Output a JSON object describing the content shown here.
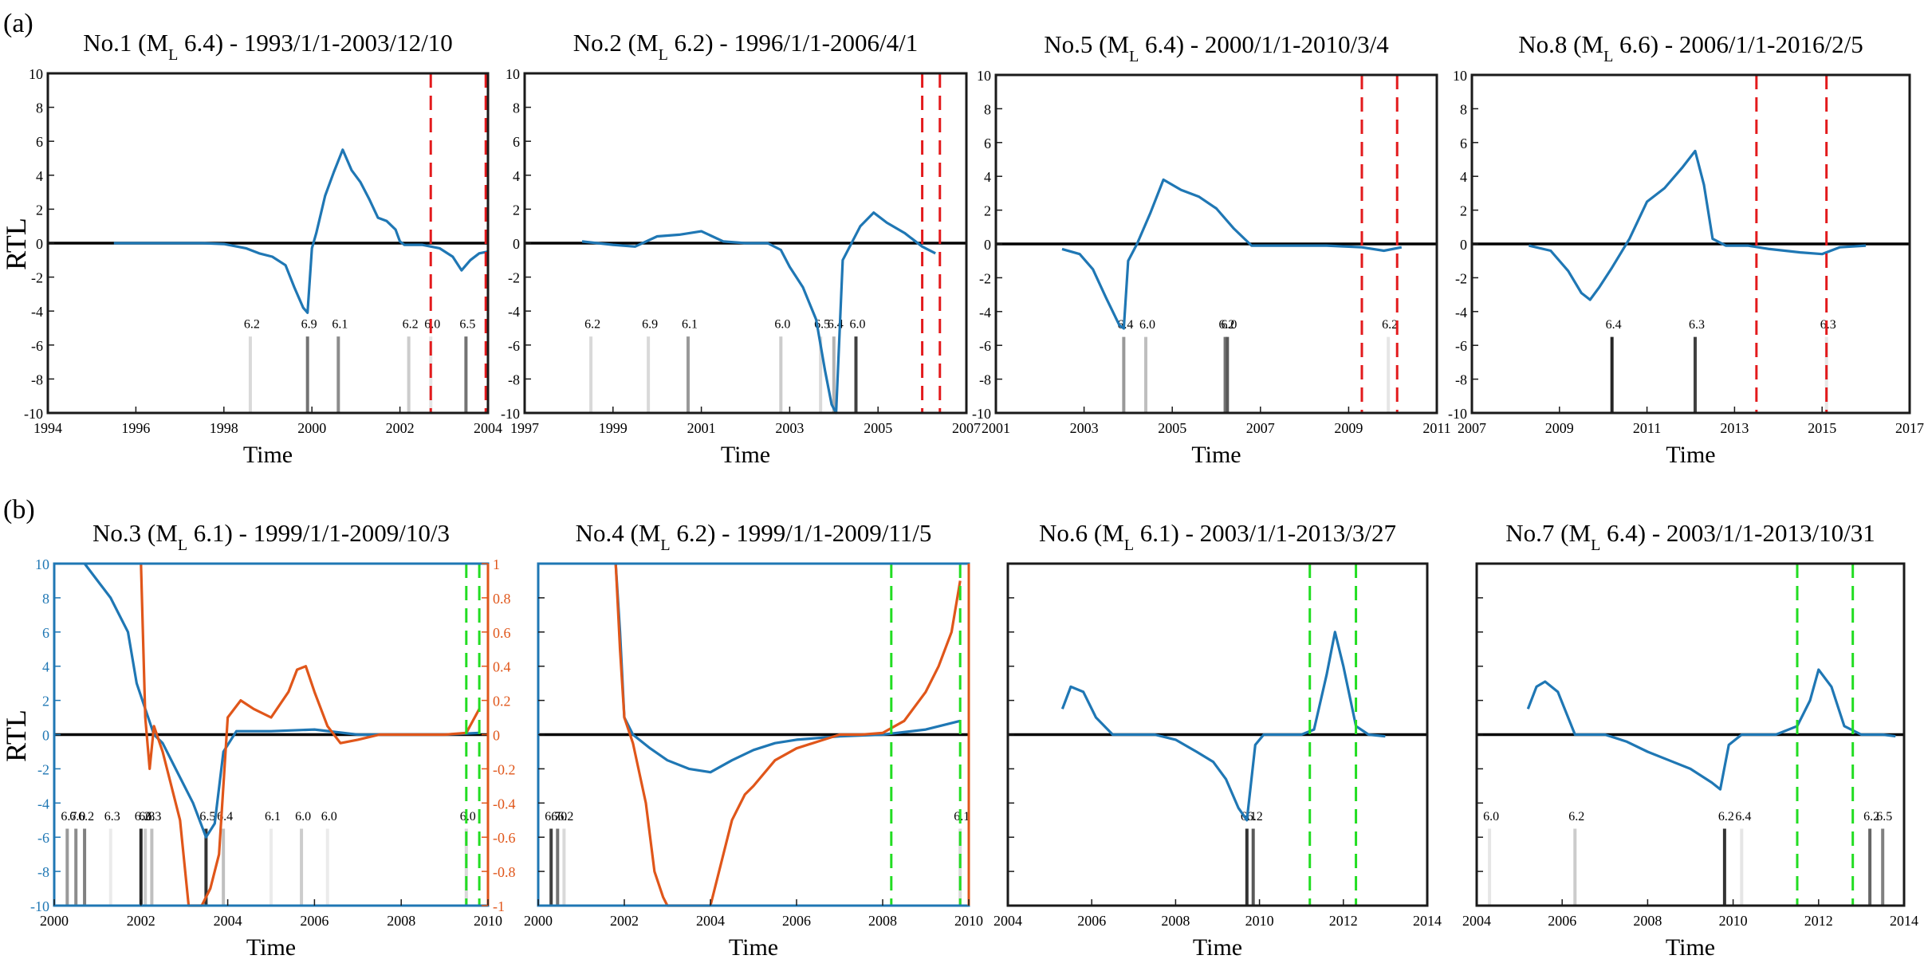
{
  "panel_labels": [
    "(a)",
    "(b)"
  ],
  "ylabel": "RTL",
  "xlabel": "Time",
  "colors": {
    "rtl": "#1f77b4",
    "secondary": "#e0561a",
    "zero": "#000000",
    "red_marker": "#e31a1c",
    "green_marker": "#22dd22"
  },
  "chart_data": [
    {
      "type": "line",
      "title_main": "No.1  (M",
      "title_sub": "L",
      "title_rest": " 6.4) - 1993/1/1-2003/12/10",
      "xlabel": "Time",
      "ylabel": "RTL",
      "xlim": [
        1994,
        2004
      ],
      "ylim": [
        -10,
        10
      ],
      "xticks": [
        1994,
        1996,
        1998,
        2000,
        2002,
        2004
      ],
      "yticks": [
        -10,
        -8,
        -6,
        -4,
        -2,
        0,
        2,
        4,
        6,
        8,
        10
      ],
      "series": [
        {
          "x": [
            1995.5,
            1996.5,
            1997.5,
            1998.0,
            1998.5,
            1998.8,
            1999.1,
            1999.4,
            1999.6,
            1999.8,
            1999.9,
            2000.0,
            2000.1,
            2000.3,
            2000.5,
            2000.7,
            2000.9,
            2001.1,
            2001.3,
            2001.5,
            2001.7,
            2001.9,
            2002.0,
            2002.1,
            2002.5,
            2002.9,
            2003.2,
            2003.4,
            2003.6,
            2003.8,
            2004.0
          ],
          "y": [
            0,
            0,
            0,
            -0.05,
            -0.3,
            -0.6,
            -0.8,
            -1.3,
            -2.6,
            -3.8,
            -4.1,
            -0.3,
            0.6,
            2.8,
            4.2,
            5.5,
            4.3,
            3.6,
            2.6,
            1.5,
            1.3,
            0.8,
            0.1,
            -0.1,
            -0.1,
            -0.3,
            -0.8,
            -1.6,
            -1.0,
            -0.6,
            -0.5
          ]
        }
      ],
      "events": [
        {
          "x": 1998.6,
          "label": "6.2",
          "shade": 0.85
        },
        {
          "x": 1999.9,
          "label": "6.9",
          "shade": 0.45
        },
        {
          "x": 2000.6,
          "label": "6.1",
          "shade": 0.55
        },
        {
          "x": 2002.2,
          "label": "6.2",
          "shade": 0.8
        },
        {
          "x": 2002.7,
          "label": "6.0",
          "shade": 0.9
        },
        {
          "x": 2003.5,
          "label": "6.5",
          "shade": 0.45
        }
      ],
      "vmarkers": {
        "color": "red",
        "x": [
          2002.7,
          2003.95
        ]
      }
    },
    {
      "type": "line",
      "title_main": "No.2 (M",
      "title_sub": "L",
      "title_rest": " 6.2) - 1996/1/1-2006/4/1",
      "xlabel": "Time",
      "ylabel": "",
      "xlim": [
        1997,
        2007
      ],
      "ylim": [
        -10,
        10
      ],
      "xticks": [
        1997,
        1999,
        2001,
        2003,
        2005,
        2007
      ],
      "yticks": [
        -10,
        -8,
        -6,
        -4,
        -2,
        0,
        2,
        4,
        6,
        8,
        10
      ],
      "series": [
        {
          "x": [
            1998.3,
            1999.0,
            1999.5,
            2000.0,
            2000.5,
            2001.0,
            2001.5,
            2002.0,
            2002.5,
            2002.8,
            2003.0,
            2003.3,
            2003.6,
            2003.8,
            2003.95,
            2004.05,
            2004.2,
            2004.6,
            2004.9,
            2005.2,
            2005.6,
            2006.0,
            2006.3
          ],
          "y": [
            0.1,
            -0.1,
            -0.2,
            0.4,
            0.5,
            0.7,
            0.1,
            0,
            0,
            -0.4,
            -1.4,
            -2.6,
            -4.5,
            -7.5,
            -9.5,
            -10,
            -1.0,
            1.0,
            1.8,
            1.2,
            0.6,
            -0.2,
            -0.6
          ]
        }
      ],
      "events": [
        {
          "x": 1998.5,
          "label": "6.2",
          "shade": 0.85
        },
        {
          "x": 1999.8,
          "label": "6.9",
          "shade": 0.85
        },
        {
          "x": 2000.7,
          "label": "6.1",
          "shade": 0.6
        },
        {
          "x": 2002.8,
          "label": "6.0",
          "shade": 0.8
        },
        {
          "x": 2003.7,
          "label": "6.5",
          "shade": 0.85
        },
        {
          "x": 2004.0,
          "label": "6.4",
          "shade": 0.7
        },
        {
          "x": 2004.5,
          "label": "6.0",
          "shade": 0.25
        }
      ],
      "vmarkers": {
        "color": "red",
        "x": [
          2006.0,
          2006.4
        ]
      }
    },
    {
      "type": "line",
      "title_main": "No.5 (M",
      "title_sub": "L",
      "title_rest": " 6.4) - 2000/1/1-2010/3/4",
      "xlabel": "Time",
      "ylabel": "",
      "xlim": [
        2001,
        2011
      ],
      "ylim": [
        -10,
        10
      ],
      "xticks": [
        2001,
        2003,
        2005,
        2007,
        2009,
        2011
      ],
      "yticks": [
        -10,
        -8,
        -6,
        -4,
        -2,
        0,
        2,
        4,
        6,
        8,
        10
      ],
      "series": [
        {
          "x": [
            2002.5,
            2002.9,
            2003.2,
            2003.5,
            2003.8,
            2003.9,
            2004.0,
            2004.2,
            2004.5,
            2004.8,
            2005.2,
            2005.6,
            2006.0,
            2006.4,
            2006.8,
            2007.5,
            2008.5,
            2009.3,
            2009.8,
            2010.2
          ],
          "y": [
            -0.3,
            -0.6,
            -1.5,
            -3.2,
            -4.8,
            -5.0,
            -1.0,
            0,
            1.8,
            3.8,
            3.2,
            2.8,
            2.1,
            0.9,
            -0.1,
            -0.1,
            -0.1,
            -0.2,
            -0.4,
            -0.2
          ]
        }
      ],
      "events": [
        {
          "x": 2003.9,
          "label": "6.4",
          "shade": 0.6
        },
        {
          "x": 2004.4,
          "label": "6.0",
          "shade": 0.75
        },
        {
          "x": 2006.2,
          "label": "6.2",
          "shade": 0.45
        },
        {
          "x": 2006.25,
          "label": "6.0",
          "shade": 0.35
        },
        {
          "x": 2009.9,
          "label": "6.2",
          "shade": 0.9
        }
      ],
      "vmarkers": {
        "color": "red",
        "x": [
          2009.3,
          2010.1
        ]
      }
    },
    {
      "type": "line",
      "title_main": "No.8 (M",
      "title_sub": "L",
      "title_rest": " 6.6) - 2006/1/1-2016/2/5",
      "xlabel": "Time",
      "ylabel": "",
      "xlim": [
        2007,
        2017
      ],
      "ylim": [
        -10,
        10
      ],
      "xticks": [
        2007,
        2009,
        2011,
        2013,
        2015,
        2017
      ],
      "yticks": [
        -10,
        -8,
        -6,
        -4,
        -2,
        0,
        2,
        4,
        6,
        8,
        10
      ],
      "series": [
        {
          "x": [
            2008.3,
            2008.8,
            2009.2,
            2009.5,
            2009.7,
            2009.9,
            2010.2,
            2010.6,
            2011.0,
            2011.4,
            2011.8,
            2012.1,
            2012.3,
            2012.5,
            2012.8,
            2013.3,
            2013.8,
            2014.5,
            2015.0,
            2015.4,
            2016.0
          ],
          "y": [
            -0.1,
            -0.4,
            -1.6,
            -2.9,
            -3.3,
            -2.6,
            -1.4,
            0.3,
            2.5,
            3.3,
            4.5,
            5.5,
            3.5,
            0.3,
            -0.1,
            -0.1,
            -0.3,
            -0.5,
            -0.6,
            -0.2,
            -0.1
          ]
        }
      ],
      "events": [
        {
          "x": 2010.2,
          "label": "6.4",
          "shade": 0.15
        },
        {
          "x": 2012.1,
          "label": "6.3",
          "shade": 0.25
        },
        {
          "x": 2015.1,
          "label": "6.3",
          "shade": 0.9
        }
      ],
      "vmarkers": {
        "color": "red",
        "x": [
          2013.5,
          2015.1
        ]
      }
    },
    {
      "type": "line",
      "title_main": "No.3 (M",
      "title_sub": "L",
      "title_rest": " 6.1) - 1999/1/1-2009/10/3",
      "xlabel": "Time",
      "ylabel": "RTL",
      "xlim": [
        2000,
        2010
      ],
      "ylim": [
        -10,
        10
      ],
      "y2lim": [
        -1,
        1
      ],
      "xticks": [
        2000,
        2002,
        2004,
        2006,
        2008,
        2010
      ],
      "yticks": [
        -10,
        -8,
        -6,
        -4,
        -2,
        0,
        2,
        4,
        6,
        8,
        10
      ],
      "y2ticks": [
        -1,
        -0.8,
        -0.6,
        -0.4,
        -0.2,
        0,
        0.2,
        0.4,
        0.6,
        0.8,
        1
      ],
      "series": [
        {
          "x": [
            2000.7,
            2001.0,
            2001.3,
            2001.5,
            2001.7,
            2001.9,
            2002.1,
            2002.3,
            2002.5,
            2002.8,
            2003.2,
            2003.5,
            2003.7,
            2003.9,
            2004.2,
            2005.0,
            2006.0,
            2007.0,
            2008.0,
            2009.0,
            2009.8
          ],
          "y": [
            10,
            9.0,
            8.0,
            7.0,
            6.0,
            3.0,
            1.5,
            0,
            -0.5,
            -2.0,
            -4.0,
            -6.0,
            -5.2,
            -1.0,
            0.2,
            0.2,
            0.3,
            0,
            0,
            0,
            0.1
          ]
        },
        {
          "axis": "y2",
          "x": [
            2002.0,
            2002.1,
            2002.2,
            2002.3,
            2002.5,
            2002.7,
            2002.9,
            2003.1,
            2003.4,
            2003.6,
            2003.8,
            2004.0,
            2004.3,
            2004.6,
            2005.0,
            2005.4,
            2005.6,
            2005.8,
            2006.0,
            2006.3,
            2006.6,
            2007.0,
            2007.5,
            2008.0,
            2009.0,
            2009.5,
            2009.8
          ],
          "y": [
            1.0,
            0.1,
            -0.2,
            0.05,
            -0.1,
            -0.3,
            -0.5,
            -1.0,
            -1.0,
            -0.9,
            -0.7,
            0.1,
            0.2,
            0.15,
            0.1,
            0.25,
            0.38,
            0.4,
            0.25,
            0.05,
            -0.05,
            -0.03,
            0,
            0,
            0,
            0.01,
            0.15
          ]
        }
      ],
      "events": [
        {
          "x": 2000.3,
          "label": "6.7",
          "shade": 0.6
        },
        {
          "x": 2000.5,
          "label": "6.0",
          "shade": 0.55
        },
        {
          "x": 2000.7,
          "label": "6.2",
          "shade": 0.5
        },
        {
          "x": 2001.3,
          "label": "6.3",
          "shade": 0.92
        },
        {
          "x": 2002.0,
          "label": "6.2",
          "shade": 0.15
        },
        {
          "x": 2002.1,
          "label": "6.8",
          "shade": 0.8
        },
        {
          "x": 2002.25,
          "label": "6.3",
          "shade": 0.75
        },
        {
          "x": 2003.5,
          "label": "6.5",
          "shade": 0.2
        },
        {
          "x": 2003.9,
          "label": "6.4",
          "shade": 0.75
        },
        {
          "x": 2005.0,
          "label": "6.1",
          "shade": 0.92
        },
        {
          "x": 2005.7,
          "label": "6.0",
          "shade": 0.8
        },
        {
          "x": 2006.3,
          "label": "6.0",
          "shade": 0.92
        },
        {
          "x": 2009.5,
          "label": "6.0",
          "shade": 0.85
        }
      ],
      "vmarkers": {
        "color": "green",
        "x": [
          2009.5,
          2009.8
        ]
      }
    },
    {
      "type": "line",
      "title_main": "No.4 (M",
      "title_sub": "L",
      "title_rest": " 6.2) - 1999/1/1-2009/11/5",
      "xlabel": "Time",
      "ylabel": "",
      "xlim": [
        2000,
        2010
      ],
      "ylim": [
        -10,
        10
      ],
      "y2lim": [
        -1,
        1
      ],
      "xticks": [
        2000,
        2002,
        2004,
        2006,
        2008,
        2010
      ],
      "yticks": [],
      "series": [
        {
          "x": [
            2001.8,
            2001.9,
            2002.0,
            2002.2,
            2002.6,
            2003.0,
            2003.5,
            2004.0,
            2004.5,
            2005.0,
            2005.5,
            2006.0,
            2007.0,
            2008.0,
            2009.0,
            2009.8
          ],
          "y": [
            10,
            6.0,
            1.0,
            0,
            -0.8,
            -1.5,
            -2.0,
            -2.2,
            -1.5,
            -0.9,
            -0.5,
            -0.3,
            -0.1,
            0,
            0.3,
            0.8
          ]
        },
        {
          "axis": "y2",
          "x": [
            2001.8,
            2001.9,
            2002.0,
            2002.2,
            2002.5,
            2002.7,
            2002.9,
            2003.0,
            2004.0,
            2004.2,
            2004.5,
            2004.8,
            2005.0,
            2005.5,
            2006.0,
            2006.5,
            2007.0,
            2007.5,
            2008.0,
            2008.5,
            2009.0,
            2009.3,
            2009.6,
            2009.8
          ],
          "y": [
            1.0,
            0.5,
            0.1,
            -0.05,
            -0.4,
            -0.8,
            -0.95,
            -1.0,
            -1.0,
            -0.8,
            -0.5,
            -0.35,
            -0.3,
            -0.15,
            -0.08,
            -0.04,
            0,
            0,
            0.01,
            0.08,
            0.25,
            0.4,
            0.6,
            0.9
          ]
        }
      ],
      "events": [
        {
          "x": 2000.3,
          "label": "6.7",
          "shade": 0.25
        },
        {
          "x": 2000.45,
          "label": "6.0",
          "shade": 0.45
        },
        {
          "x": 2000.6,
          "label": "6.2",
          "shade": 0.85
        },
        {
          "x": 2009.8,
          "label": "6.1",
          "shade": 0.85
        }
      ],
      "vmarkers": {
        "color": "green",
        "x": [
          2008.2,
          2009.8
        ]
      }
    },
    {
      "type": "line",
      "title_main": "No.6 (M",
      "title_sub": "L",
      "title_rest": " 6.1) - 2003/1/1-2013/3/27",
      "xlabel": "Time",
      "ylabel": "",
      "xlim": [
        2004,
        2014
      ],
      "ylim": [
        -10,
        10
      ],
      "xticks": [
        2004,
        2006,
        2008,
        2010,
        2012,
        2014
      ],
      "yticks": [],
      "series": [
        {
          "x": [
            2005.3,
            2005.5,
            2005.8,
            2006.1,
            2006.5,
            2007.0,
            2007.5,
            2008.0,
            2008.5,
            2008.9,
            2009.2,
            2009.5,
            2009.7,
            2009.9,
            2010.1,
            2010.5,
            2011.0,
            2011.3,
            2011.6,
            2011.8,
            2012.0,
            2012.3,
            2012.6,
            2013.0
          ],
          "y": [
            1.5,
            2.8,
            2.5,
            1.0,
            0,
            0,
            0,
            -0.3,
            -1.0,
            -1.6,
            -2.6,
            -4.3,
            -5.0,
            -0.6,
            0,
            0,
            0,
            0.3,
            3.5,
            6.0,
            4.0,
            0.5,
            0,
            -0.1
          ]
        }
      ],
      "events": [
        {
          "x": 2009.7,
          "label": "6.1",
          "shade": 0.2
        },
        {
          "x": 2009.85,
          "label": "6.2",
          "shade": 0.35
        }
      ],
      "vmarkers": {
        "color": "green",
        "x": [
          2011.2,
          2012.3
        ]
      }
    },
    {
      "type": "line",
      "title_main": "No.7 (M",
      "title_sub": "L",
      "title_rest": " 6.4) - 2003/1/1-2013/10/31",
      "xlabel": "Time",
      "ylabel": "",
      "xlim": [
        2004,
        2014
      ],
      "ylim": [
        -10,
        10
      ],
      "xticks": [
        2004,
        2006,
        2008,
        2010,
        2012,
        2014
      ],
      "yticks": [],
      "series": [
        {
          "x": [
            2005.2,
            2005.4,
            2005.6,
            2005.9,
            2006.3,
            2006.7,
            2007.0,
            2007.5,
            2008.0,
            2008.5,
            2009.0,
            2009.5,
            2009.7,
            2009.9,
            2010.2,
            2010.6,
            2011.0,
            2011.5,
            2011.8,
            2012.0,
            2012.3,
            2012.6,
            2013.0,
            2013.5,
            2013.8
          ],
          "y": [
            1.5,
            2.8,
            3.1,
            2.5,
            0,
            0,
            0,
            -0.4,
            -1.0,
            -1.5,
            -2.0,
            -2.8,
            -3.2,
            -0.6,
            0,
            0,
            0,
            0.5,
            2.0,
            3.8,
            2.8,
            0.5,
            0,
            0,
            -0.1
          ]
        }
      ],
      "events": [
        {
          "x": 2004.3,
          "label": "6.0",
          "shade": 0.9
        },
        {
          "x": 2006.3,
          "label": "6.2",
          "shade": 0.8
        },
        {
          "x": 2009.8,
          "label": "6.2",
          "shade": 0.2
        },
        {
          "x": 2010.2,
          "label": "6.4",
          "shade": 0.9
        },
        {
          "x": 2013.2,
          "label": "6.2",
          "shade": 0.4
        },
        {
          "x": 2013.5,
          "label": "6.5",
          "shade": 0.5
        }
      ],
      "vmarkers": {
        "color": "green",
        "x": [
          2011.5,
          2012.8
        ]
      }
    }
  ]
}
